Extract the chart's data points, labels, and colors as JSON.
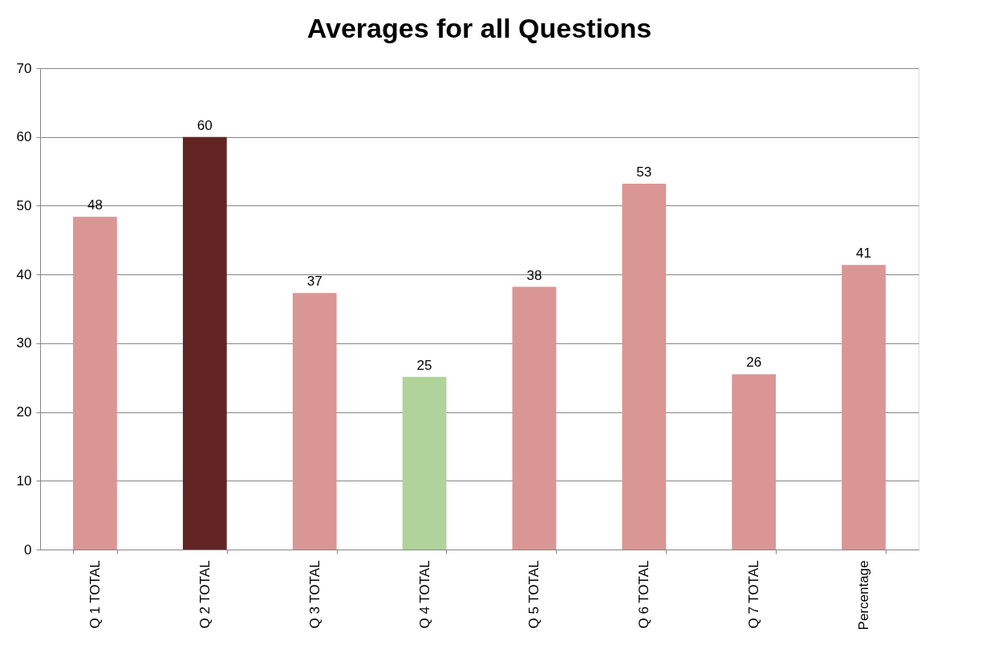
{
  "chart_data": {
    "type": "bar",
    "title": "Averages for all Questions",
    "categories": [
      "Q 1 TOTAL",
      "Q 2 TOTAL",
      "Q 3 TOTAL",
      "Q 4 TOTAL",
      "Q 5 TOTAL",
      "Q 6 TOTAL",
      "Q 7 TOTAL",
      "Percentage"
    ],
    "values": [
      48.4,
      60,
      37.3,
      25.1,
      38.2,
      53.2,
      25.5,
      41.4
    ],
    "value_labels": [
      "48",
      "60",
      "37",
      "25",
      "38",
      "53",
      "26",
      "41"
    ],
    "colors": [
      "#d99694",
      "#632523",
      "#d99694",
      "#afd39a",
      "#d99694",
      "#d99694",
      "#d99694",
      "#d99694"
    ],
    "ylim": [
      0,
      70
    ],
    "yticks": [
      0,
      10,
      20,
      30,
      40,
      50,
      60,
      70
    ],
    "grid": "y"
  }
}
